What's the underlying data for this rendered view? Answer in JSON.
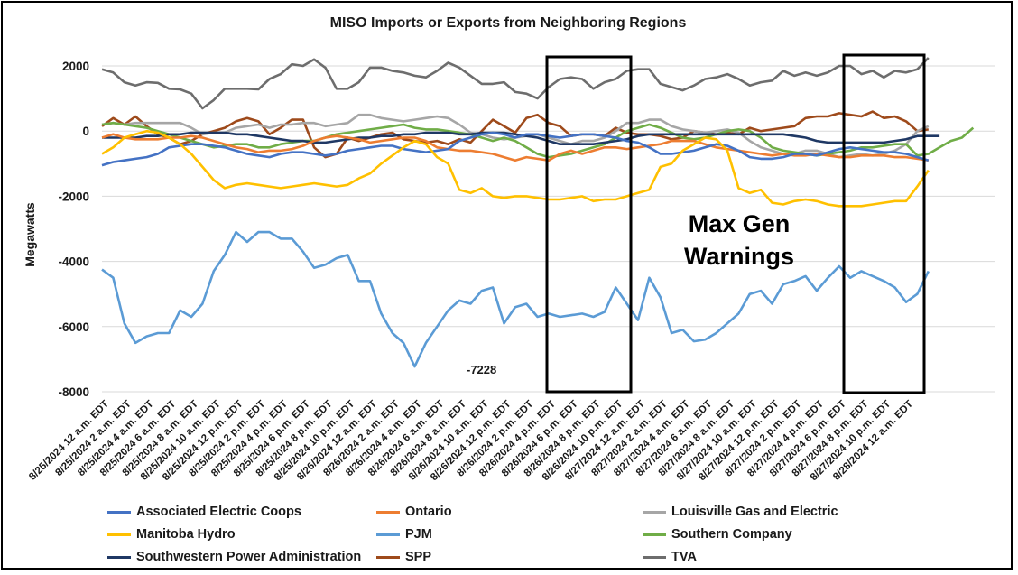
{
  "chart_data": {
    "type": "line",
    "title": "MISO Imports or Exports from Neighboring Regions",
    "xlabel": "",
    "ylabel": "Megawatts",
    "ylim": [
      -8000,
      2000
    ],
    "yticks": [
      2000,
      0,
      -2000,
      -4000,
      -6000,
      -8000
    ],
    "ytick_labels": [
      "2000",
      "0",
      "-2000",
      "-4000",
      "-6000",
      "-8000"
    ],
    "grid": true,
    "legend_position": "bottom",
    "n_points": 80,
    "xtick_labels": [
      "8/25/2024 12 a.m. EDT",
      "8/25/2024 2 a.m. EDT",
      "8/25/2024 4 a.m. EDT",
      "8/25/2024 6 a.m. EDT",
      "8/25/2024 8 a.m. EDT",
      "8/25/2024 10 a.m. EDT",
      "8/25/2024 12 p.m. EDT",
      "8/25/2024 2 p.m. EDT",
      "8/25/2024 4 p.m. EDT",
      "8/25/2024 6 p.m. EDT",
      "8/25/2024 8 p.m. EDT",
      "8/25/2024 10 p.m. EDT",
      "8/26/2024 12 a.m. EDT",
      "8/26/2024 2 a.m. EDT",
      "8/26/2024 4 a.m. EDT",
      "8/26/2024 6 a.m. EDT",
      "8/26/2024 8 a.m. EDT",
      "8/26/2024 10 a.m. EDT",
      "8/26/2024 12 p.m. EDT",
      "8/26/2024 2 p.m. EDT",
      "8/26/2024 4 p.m. EDT",
      "8/26/2024 6 p.m. EDT",
      "8/26/2024 8 p.m. EDT",
      "8/26/2024 10 p.m. EDT",
      "8/27/2024 12 a.m. EDT",
      "8/27/2024 2 a.m. EDT",
      "8/27/2024 4 a.m. EDT",
      "8/27/2024 6 a.m. EDT",
      "8/27/2024 8 a.m. EDT",
      "8/27/2024 10 a.m. EDT",
      "8/27/2024 12 p.m. EDT",
      "8/27/2024 2 p.m. EDT",
      "8/27/2024 4 p.m. EDT",
      "8/27/2024 6 p.m. EDT",
      "8/27/2024 8 p.m. EDT",
      "8/27/2024 10 p.m. EDT",
      "8/28/2024 12 a.m. EDT"
    ],
    "series": [
      {
        "name": "TVA",
        "color": "#6d6d6d",
        "values": [
          1900,
          1800,
          1500,
          1400,
          1500,
          1480,
          1300,
          1280,
          1150,
          700,
          950,
          1300,
          1300,
          1300,
          1280,
          1600,
          1750,
          2050,
          2000,
          2200,
          1950,
          1300,
          1300,
          1500,
          1950,
          1950,
          1850,
          1800,
          1700,
          1650,
          1850,
          2100,
          1950,
          1700,
          1450,
          1450,
          1500,
          1200,
          1150,
          1000,
          1350,
          1600,
          1650,
          1600,
          1300,
          1500,
          1600,
          1850,
          1900,
          1900,
          1450,
          1350,
          1250,
          1400,
          1600,
          1650,
          1750,
          1600,
          1400,
          1500,
          1550,
          1850,
          1700,
          1800,
          1700,
          1800,
          2000,
          2000,
          1750,
          1850,
          1650,
          1850,
          1800,
          1900,
          2250,
          null,
          null,
          null,
          null,
          null
        ]
      },
      {
        "name": "SPP",
        "color": "#9e4a1b",
        "values": [
          150,
          400,
          200,
          450,
          150,
          -100,
          -200,
          -400,
          -300,
          -100,
          0,
          100,
          300,
          400,
          300,
          -100,
          100,
          350,
          350,
          -500,
          -800,
          -700,
          -200,
          -300,
          -200,
          -100,
          -50,
          -250,
          -300,
          -350,
          -300,
          -400,
          -250,
          -350,
          0,
          350,
          150,
          -50,
          400,
          500,
          250,
          150,
          -150,
          -100,
          -100,
          -150,
          100,
          -50,
          -100,
          -100,
          -150,
          -250,
          -200,
          0,
          -50,
          -100,
          -50,
          -100,
          100,
          0,
          50,
          100,
          150,
          400,
          450,
          450,
          550,
          500,
          450,
          600,
          400,
          450,
          300,
          0,
          50,
          null,
          null,
          null,
          null,
          null
        ]
      },
      {
        "name": "Louisville Gas and Electric",
        "color": "#a6a6a6",
        "values": [
          200,
          250,
          200,
          250,
          250,
          250,
          250,
          250,
          100,
          -100,
          -50,
          -50,
          100,
          150,
          200,
          100,
          200,
          200,
          250,
          250,
          150,
          200,
          250,
          500,
          500,
          400,
          350,
          300,
          350,
          400,
          450,
          400,
          200,
          -50,
          -100,
          -200,
          -250,
          -200,
          -150,
          -100,
          -200,
          -300,
          -400,
          -300,
          -300,
          -200,
          0,
          250,
          250,
          350,
          350,
          150,
          50,
          0,
          -50,
          0,
          50,
          -50,
          -300,
          -500,
          -600,
          -700,
          -700,
          -600,
          -600,
          -700,
          -800,
          -750,
          -700,
          -750,
          -700,
          -600,
          -400,
          0,
          150,
          null,
          null,
          null,
          null,
          null
        ]
      },
      {
        "name": "Southern Company",
        "color": "#70ad47",
        "values": [
          200,
          250,
          200,
          150,
          100,
          0,
          -100,
          -200,
          -300,
          -400,
          -500,
          -450,
          -400,
          -400,
          -500,
          -500,
          -400,
          -350,
          -300,
          -300,
          -200,
          -100,
          -50,
          0,
          50,
          100,
          150,
          200,
          100,
          50,
          50,
          0,
          -50,
          -100,
          -200,
          -300,
          -200,
          -300,
          -500,
          -700,
          -800,
          -750,
          -700,
          -600,
          -500,
          -400,
          -200,
          0,
          100,
          200,
          100,
          -50,
          -200,
          -250,
          -200,
          -100,
          0,
          50,
          0,
          -200,
          -500,
          -600,
          -650,
          -700,
          -750,
          -700,
          -650,
          -600,
          -500,
          -500,
          -450,
          -400,
          -400,
          -750,
          -700,
          -500,
          -300,
          -200,
          100,
          null
        ]
      },
      {
        "name": "Southwestern Power Administration",
        "color": "#1f3864",
        "values": [
          -200,
          -200,
          -200,
          -200,
          -150,
          -150,
          -100,
          -100,
          -50,
          -50,
          -50,
          -50,
          -100,
          -100,
          -150,
          -200,
          -250,
          -300,
          -300,
          -350,
          -350,
          -300,
          -250,
          -200,
          -200,
          -150,
          -150,
          -100,
          -100,
          -50,
          -50,
          -50,
          -100,
          -100,
          -50,
          -50,
          -50,
          -100,
          -150,
          -200,
          -300,
          -400,
          -400,
          -400,
          -400,
          -350,
          -300,
          -250,
          -150,
          -100,
          -100,
          -100,
          -100,
          -100,
          -100,
          -100,
          -100,
          -100,
          -100,
          -100,
          -100,
          -100,
          -150,
          -200,
          -300,
          -350,
          -350,
          -350,
          -350,
          -350,
          -350,
          -300,
          -250,
          -150,
          -150,
          -150,
          null,
          null,
          null,
          null
        ]
      },
      {
        "name": "Ontario",
        "color": "#ed7d31",
        "values": [
          -200,
          -100,
          -200,
          -250,
          -250,
          -250,
          -200,
          -200,
          -150,
          -200,
          -300,
          -400,
          -500,
          -550,
          -650,
          -600,
          -600,
          -550,
          -450,
          -300,
          -200,
          -150,
          -200,
          -250,
          -350,
          -300,
          -250,
          -200,
          -200,
          -300,
          -500,
          -550,
          -600,
          -600,
          -650,
          -700,
          -800,
          -900,
          -800,
          -850,
          -900,
          -700,
          -600,
          -700,
          -600,
          -500,
          -500,
          -550,
          -500,
          -450,
          -400,
          -300,
          -300,
          -300,
          -400,
          -500,
          -550,
          -600,
          -650,
          -700,
          -750,
          -700,
          -750,
          -750,
          -700,
          -750,
          -800,
          -800,
          -750,
          -750,
          -750,
          -800,
          -800,
          -850,
          -900,
          null,
          null,
          null,
          null,
          null
        ]
      },
      {
        "name": "Associated Electric Coops",
        "color": "#4472c4",
        "values": [
          -1050,
          -950,
          -900,
          -850,
          -800,
          -700,
          -500,
          -450,
          -400,
          -400,
          -450,
          -500,
          -600,
          -700,
          -750,
          -800,
          -700,
          -650,
          -650,
          -700,
          -750,
          -700,
          -600,
          -550,
          -500,
          -450,
          -450,
          -550,
          -600,
          -650,
          -600,
          -550,
          -300,
          -200,
          -100,
          -50,
          -100,
          -200,
          -100,
          -100,
          -150,
          -200,
          -150,
          -100,
          -100,
          -150,
          -200,
          -300,
          -350,
          -500,
          -700,
          -700,
          -650,
          -600,
          -500,
          -400,
          -450,
          -600,
          -800,
          -850,
          -850,
          -800,
          -700,
          -700,
          -750,
          -650,
          -550,
          -500,
          -550,
          -600,
          -650,
          -650,
          -700,
          -800,
          -900,
          null,
          null,
          null,
          null,
          null
        ]
      },
      {
        "name": "Manitoba Hydro",
        "color": "#ffc000",
        "values": [
          -700,
          -500,
          -200,
          -100,
          0,
          -50,
          -200,
          -400,
          -700,
          -1100,
          -1500,
          -1750,
          -1650,
          -1600,
          -1650,
          -1700,
          -1750,
          -1700,
          -1650,
          -1600,
          -1650,
          -1700,
          -1650,
          -1450,
          -1300,
          -1000,
          -750,
          -500,
          -300,
          -400,
          -800,
          -1000,
          -1800,
          -1900,
          -1750,
          -2000,
          -2050,
          -2000,
          -2000,
          -2050,
          -2100,
          -2100,
          -2050,
          -2000,
          -2150,
          -2100,
          -2100,
          -2000,
          -1900,
          -1800,
          -1100,
          -1000,
          -600,
          -400,
          -200,
          -250,
          -600,
          -1750,
          -1900,
          -1800,
          -2200,
          -2250,
          -2150,
          -2100,
          -2150,
          -2250,
          -2300,
          -2300,
          -2300,
          -2250,
          -2200,
          -2150,
          -2150,
          -1700,
          -1200,
          null,
          null,
          null,
          null,
          null
        ]
      },
      {
        "name": "PJM",
        "color": "#5b9bd5",
        "values": [
          -4250,
          -4500,
          -5900,
          -6500,
          -6300,
          -6200,
          -6200,
          -5500,
          -5700,
          -5300,
          -4300,
          -3800,
          -3100,
          -3400,
          -3100,
          -3100,
          -3300,
          -3300,
          -3700,
          -4200,
          -4100,
          -3900,
          -3800,
          -4600,
          -4600,
          -5600,
          -6200,
          -6500,
          -7228,
          -6500,
          -6000,
          -5500,
          -5200,
          -5300,
          -4900,
          -4800,
          -5900,
          -5400,
          -5300,
          -5700,
          -5600,
          -5700,
          -5650,
          -5600,
          -5700,
          -5550,
          -4800,
          -5300,
          -5800,
          -4500,
          -5100,
          -6200,
          -6100,
          -6450,
          -6400,
          -6200,
          -5900,
          -5600,
          -5000,
          -4900,
          -5300,
          -4700,
          -4600,
          -4450,
          -4900,
          -4500,
          -4150,
          -4500,
          -4300,
          -4450,
          -4600,
          -4800,
          -5250,
          -5000,
          -4300,
          null,
          null,
          null,
          null,
          null
        ]
      }
    ],
    "annotations": {
      "min_label": "-7228",
      "box_label_line1": "Max Gen",
      "box_label_line2": "Warnings"
    }
  },
  "legend": [
    {
      "label": "Associated Electric Coops",
      "color": "#4472c4"
    },
    {
      "label": "Ontario",
      "color": "#ed7d31"
    },
    {
      "label": "Louisville Gas and Electric",
      "color": "#a6a6a6"
    },
    {
      "label": "Manitoba Hydro",
      "color": "#ffc000"
    },
    {
      "label": "PJM",
      "color": "#5b9bd5"
    },
    {
      "label": "Southern Company",
      "color": "#70ad47"
    },
    {
      "label": "Southwestern Power Administration",
      "color": "#1f3864"
    },
    {
      "label": "SPP",
      "color": "#9e4a1b"
    },
    {
      "label": "TVA",
      "color": "#6d6d6d"
    }
  ]
}
